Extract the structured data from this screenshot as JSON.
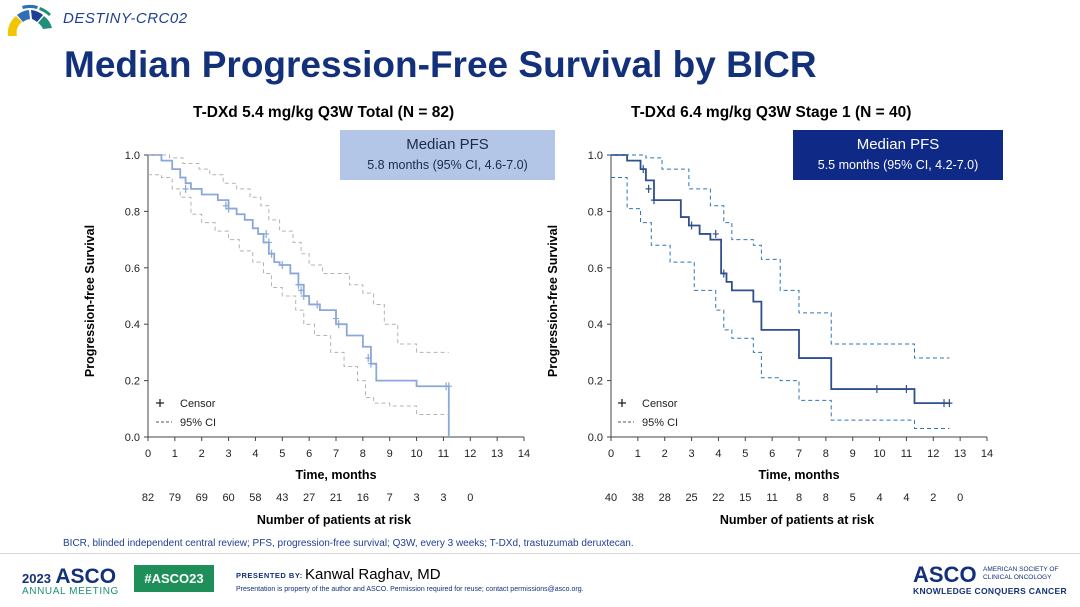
{
  "header": {
    "trial_name": "DESTINY-CRC02",
    "title": "Median Progression-Free Survival by BICR"
  },
  "footnote": "BICR, blinded independent central review; PFS, progression-free survival; Q3W, every 3 weeks; T-DXd, trastuzumab deruxtecan.",
  "footer": {
    "year": "2023",
    "asco": "ASCO",
    "annual_meeting": "ANNUAL MEETING",
    "hashtag": "#ASCO23",
    "presented_by": "PRESENTED BY:",
    "presenter": "Kanwal Raghav, MD",
    "property_note": "Presentation is property of the author and ASCO. Permission required for reuse; contact permissions@asco.org.",
    "society_asco": "ASCO",
    "society_name_1": "AMERICAN SOCIETY OF",
    "society_name_2": "CLINICAL ONCOLOGY",
    "tagline": "KNOWLEDGE CONQUERS CANCER"
  },
  "colors": {
    "title": "#13307a",
    "left_series": "#8aa8d8",
    "left_ci": "#b4b4b4",
    "left_box_bg": "#b4c6e7",
    "right_series": "#2f4f8f",
    "right_ci": "#2e75b6",
    "right_box_bg": "#0f2a86"
  },
  "chart_data": [
    {
      "type": "line",
      "step": true,
      "title": "T-DXd 5.4 mg/kg Q3W Total (N = 82)",
      "median_box": {
        "heading": "Median PFS",
        "value": "5.8 months (95% CI, 4.6-7.0)"
      },
      "xlabel": "Time, months",
      "ylabel": "Progression-free Survival",
      "xlim": [
        0,
        14
      ],
      "ylim": [
        0,
        1.0
      ],
      "xticks": [
        "0",
        "1",
        "2",
        "3",
        "4",
        "5",
        "6",
        "7",
        "8",
        "9",
        "10",
        "11",
        "12",
        "13",
        "14"
      ],
      "yticks": [
        "0.0",
        "0.2",
        "0.4",
        "0.6",
        "0.8",
        "1.0"
      ],
      "legend": {
        "censor": "Censor",
        "ci": "95% CI",
        "position": "bottom-left"
      },
      "at_risk_label": "Number of patients at risk",
      "at_risk": [
        "82",
        "79",
        "69",
        "60",
        "58",
        "43",
        "27",
        "21",
        "16",
        "7",
        "3",
        "3",
        "0"
      ],
      "series": [
        {
          "role": "estimate",
          "x": [
            0,
            0.5,
            0.9,
            1.2,
            1.4,
            1.6,
            2.0,
            2.6,
            3.0,
            3.3,
            3.6,
            3.9,
            4.1,
            4.3,
            4.5,
            4.7,
            4.9,
            5.3,
            5.6,
            5.8,
            6.0,
            6.4,
            7.0,
            7.4,
            8.0,
            8.3,
            8.5,
            10.0,
            11.2
          ],
          "y": [
            1.0,
            0.98,
            0.95,
            0.92,
            0.9,
            0.88,
            0.86,
            0.84,
            0.81,
            0.79,
            0.77,
            0.74,
            0.72,
            0.69,
            0.65,
            0.62,
            0.61,
            0.58,
            0.54,
            0.5,
            0.47,
            0.45,
            0.4,
            0.36,
            0.32,
            0.26,
            0.2,
            0.18,
            0.0
          ]
        },
        {
          "role": "ci_upper",
          "x": [
            0,
            0.8,
            1.3,
            1.9,
            2.3,
            2.8,
            3.3,
            3.8,
            4.2,
            4.5,
            4.9,
            5.4,
            5.7,
            6.0,
            6.5,
            7.0,
            7.5,
            8.0,
            8.4,
            8.8,
            9.3,
            10.0,
            11.2
          ],
          "y": [
            1.0,
            0.99,
            0.97,
            0.95,
            0.93,
            0.9,
            0.88,
            0.85,
            0.82,
            0.77,
            0.73,
            0.69,
            0.65,
            0.61,
            0.58,
            0.58,
            0.54,
            0.51,
            0.47,
            0.4,
            0.33,
            0.3,
            0.3
          ]
        },
        {
          "role": "ci_lower",
          "x": [
            0,
            0.5,
            0.9,
            1.2,
            1.6,
            2.0,
            2.5,
            3.0,
            3.4,
            3.9,
            4.3,
            4.6,
            5.0,
            5.5,
            5.8,
            6.2,
            6.8,
            7.3,
            7.8,
            8.1,
            8.4,
            9.0,
            10.0,
            11.2
          ],
          "y": [
            0.93,
            0.92,
            0.88,
            0.85,
            0.79,
            0.76,
            0.73,
            0.7,
            0.66,
            0.62,
            0.58,
            0.53,
            0.5,
            0.45,
            0.4,
            0.36,
            0.3,
            0.25,
            0.2,
            0.14,
            0.12,
            0.11,
            0.08,
            0.08
          ]
        }
      ],
      "censor_marks": {
        "x": [
          1.4,
          2.9,
          3.0,
          4.4,
          4.5,
          4.6,
          5.0,
          5.6,
          5.7,
          5.8,
          6.3,
          7.0,
          7.1,
          8.2,
          8.3,
          11.1,
          11.2
        ],
        "y": [
          0.88,
          0.82,
          0.81,
          0.72,
          0.69,
          0.65,
          0.61,
          0.54,
          0.52,
          0.5,
          0.47,
          0.42,
          0.4,
          0.28,
          0.26,
          0.18,
          0.18
        ]
      }
    },
    {
      "type": "line",
      "step": true,
      "title": "T-DXd 6.4 mg/kg Q3W Stage 1 (N = 40)",
      "median_box": {
        "heading": "Median PFS",
        "value": "5.5 months (95% CI, 4.2-7.0)"
      },
      "xlabel": "Time, months",
      "ylabel": "Progression-free Survival",
      "xlim": [
        0,
        14
      ],
      "ylim": [
        0,
        1.0
      ],
      "xticks": [
        "0",
        "1",
        "2",
        "3",
        "4",
        "5",
        "6",
        "7",
        "8",
        "9",
        "10",
        "11",
        "12",
        "13",
        "14"
      ],
      "yticks": [
        "0.0",
        "0.2",
        "0.4",
        "0.6",
        "0.8",
        "1.0"
      ],
      "legend": {
        "censor": "Censor",
        "ci": "95% CI",
        "position": "bottom-left"
      },
      "at_risk_label": "Number of patients at risk",
      "at_risk": [
        "40",
        "38",
        "28",
        "25",
        "22",
        "15",
        "11",
        "8",
        "8",
        "5",
        "4",
        "4",
        "2",
        "0"
      ],
      "series": [
        {
          "role": "estimate",
          "x": [
            0,
            0.6,
            1.1,
            1.3,
            1.6,
            2.6,
            2.9,
            3.3,
            3.7,
            4.1,
            4.3,
            4.5,
            5.3,
            5.6,
            6.3,
            7.0,
            8.2,
            11.3,
            12.6
          ],
          "y": [
            1.0,
            0.98,
            0.95,
            0.91,
            0.84,
            0.78,
            0.75,
            0.72,
            0.7,
            0.58,
            0.55,
            0.52,
            0.48,
            0.38,
            0.38,
            0.28,
            0.17,
            0.12,
            0.12
          ]
        },
        {
          "role": "ci_upper",
          "x": [
            0,
            1.3,
            1.9,
            2.9,
            3.7,
            4.2,
            4.5,
            5.3,
            5.6,
            6.3,
            7.0,
            8.2,
            11.3,
            12.6
          ],
          "y": [
            1.0,
            0.99,
            0.95,
            0.88,
            0.82,
            0.76,
            0.7,
            0.68,
            0.63,
            0.52,
            0.44,
            0.33,
            0.28,
            0.28
          ]
        },
        {
          "role": "ci_lower",
          "x": [
            0,
            0.6,
            1.1,
            1.5,
            2.2,
            3.1,
            3.9,
            4.2,
            4.5,
            5.3,
            5.6,
            6.3,
            7.0,
            8.2,
            11.3,
            12.6
          ],
          "y": [
            0.92,
            0.81,
            0.76,
            0.68,
            0.62,
            0.52,
            0.45,
            0.38,
            0.35,
            0.3,
            0.21,
            0.2,
            0.13,
            0.06,
            0.03,
            0.03
          ]
        }
      ],
      "censor_marks": {
        "x": [
          1.2,
          1.4,
          1.6,
          3.0,
          3.9,
          4.2,
          9.9,
          11.0,
          12.4,
          12.6
        ],
        "y": [
          0.95,
          0.88,
          0.84,
          0.75,
          0.72,
          0.58,
          0.17,
          0.17,
          0.12,
          0.12
        ]
      }
    }
  ]
}
